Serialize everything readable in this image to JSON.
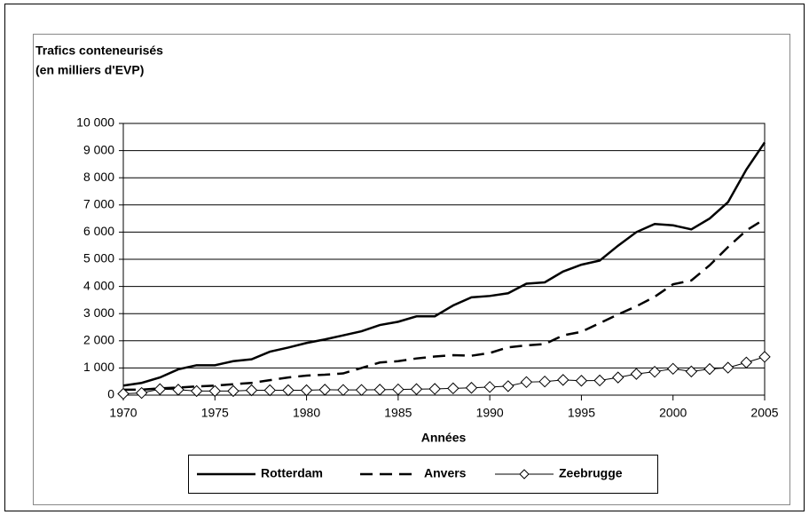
{
  "chart_data": {
    "type": "line",
    "ylabel": [
      "Trafics conteneurisés",
      "(en milliers d'EVP)"
    ],
    "xlabel": "Années",
    "x": [
      1970,
      1971,
      1972,
      1973,
      1974,
      1975,
      1976,
      1977,
      1978,
      1979,
      1980,
      1981,
      1982,
      1983,
      1984,
      1985,
      1986,
      1987,
      1988,
      1989,
      1990,
      1991,
      1992,
      1993,
      1994,
      1995,
      1996,
      1997,
      1998,
      1999,
      2000,
      2001,
      2002,
      2003,
      2004,
      2005
    ],
    "series": [
      {
        "name": "Rotterdam",
        "color": "#000000",
        "dash": "solid",
        "values": [
          350,
          450,
          650,
          950,
          1100,
          1100,
          1250,
          1320,
          1600,
          1750,
          1920,
          2050,
          2200,
          2350,
          2580,
          2700,
          2900,
          2900,
          3300,
          3600,
          3650,
          3750,
          4100,
          4150,
          4550,
          4800,
          4950,
          5500,
          6000,
          6300,
          6250,
          6100,
          6500,
          7100,
          8300,
          9300
        ]
      },
      {
        "name": "Anvers",
        "color": "#000000",
        "dash": "dashed",
        "values": [
          200,
          200,
          250,
          280,
          320,
          350,
          400,
          450,
          550,
          650,
          720,
          750,
          800,
          1000,
          1200,
          1250,
          1350,
          1420,
          1470,
          1450,
          1550,
          1760,
          1830,
          1880,
          2200,
          2330,
          2650,
          2970,
          3270,
          3620,
          4080,
          4220,
          4780,
          5450,
          6060,
          6480
        ]
      },
      {
        "name": "Zeebrugge",
        "color": "#000000",
        "dash": "solid",
        "marker": "diamond",
        "values": [
          50,
          80,
          220,
          200,
          150,
          150,
          150,
          180,
          180,
          180,
          180,
          200,
          190,
          190,
          200,
          210,
          220,
          230,
          250,
          270,
          300,
          330,
          480,
          500,
          560,
          530,
          540,
          650,
          780,
          860,
          970,
          870,
          960,
          1010,
          1200,
          1410
        ]
      }
    ],
    "xlim": [
      1970,
      2005
    ],
    "xticks": [
      1970,
      1975,
      1980,
      1985,
      1990,
      1995,
      2000,
      2005
    ],
    "ylim": [
      0,
      10000
    ],
    "yticks": [
      0,
      {
        "value": 1000,
        "label": "1 000"
      },
      {
        "value": 2000,
        "label": "2 000"
      },
      {
        "value": 3000,
        "label": "3 000"
      },
      {
        "value": 4000,
        "label": "4 000"
      },
      {
        "value": 5000,
        "label": "5 000"
      },
      {
        "value": 6000,
        "label": "6 000"
      },
      {
        "value": 7000,
        "label": "7 000"
      },
      {
        "value": 8000,
        "label": "8 000"
      },
      {
        "value": 9000,
        "label": "9 000"
      },
      {
        "value": 10000,
        "label": "10 000"
      }
    ],
    "grid": true,
    "legend": "bottom"
  }
}
